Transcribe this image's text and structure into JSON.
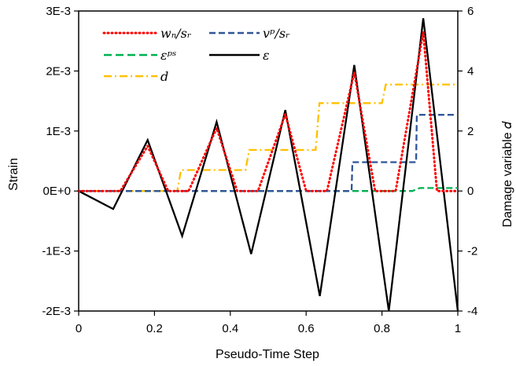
{
  "chart_data": {
    "type": "line",
    "xlabel": "Pseudo-Time Step",
    "ylabel": "Strain",
    "y2label": "Damage variable 𝑑",
    "xlim": [
      0,
      1
    ],
    "ylim": [
      -0.002,
      0.003
    ],
    "y2lim": [
      -4,
      6
    ],
    "x_ticks": [
      0,
      0.2,
      0.4,
      0.6,
      0.8,
      1
    ],
    "x_tick_labels": [
      "0",
      "0.2",
      "0.4",
      "0.6",
      "0.8",
      "1"
    ],
    "y_ticks": [
      -0.002,
      -0.001,
      0,
      0.001,
      0.002,
      0.003
    ],
    "y_tick_labels": [
      "-2E-3",
      "-1E-3",
      "0E+0",
      "1E-3",
      "2E-3",
      "3E-3"
    ],
    "y2_ticks": [
      -4,
      -2,
      0,
      2,
      4,
      6
    ],
    "y2_tick_labels": [
      "-4",
      "-2",
      "0",
      "2",
      "4",
      "6"
    ],
    "grid": false,
    "legend_position": "top-left",
    "series": [
      {
        "name": "wₙ/sᵣ",
        "axis": "left",
        "color": "#ff0000",
        "style": "dotted",
        "x": [
          0,
          0.11,
          0.182,
          0.236,
          0.29,
          0.364,
          0.418,
          0.473,
          0.545,
          0.6,
          0.655,
          0.727,
          0.782,
          0.836,
          0.909,
          0.945,
          1
        ],
        "y": [
          0,
          0,
          0.00075,
          0,
          0,
          0.00105,
          0,
          0,
          0.00128,
          0,
          0,
          0.00198,
          0,
          0,
          0.00265,
          0,
          0
        ]
      },
      {
        "name": "vᵖ/sᵣ",
        "axis": "left",
        "color": "#2f5597",
        "style": "dashed",
        "x": [
          0,
          0.72,
          0.722,
          0.89,
          0.892,
          1
        ],
        "y": [
          0,
          0,
          0.00048,
          0.00048,
          0.00127,
          0.00127
        ]
      },
      {
        "name": "εᵖˢ",
        "axis": "left",
        "color": "#00b050",
        "style": "dashed",
        "x": [
          0,
          0.88,
          0.9,
          1
        ],
        "y": [
          0,
          0,
          5e-05,
          5e-05
        ]
      },
      {
        "name": "ε",
        "axis": "left",
        "color": "#000000",
        "style": "solid",
        "x": [
          0,
          0.091,
          0.182,
          0.273,
          0.364,
          0.455,
          0.545,
          0.636,
          0.727,
          0.818,
          0.909,
          1
        ],
        "y": [
          0,
          -0.0003,
          0.00085,
          -0.00075,
          0.00115,
          -0.00105,
          0.00135,
          -0.00175,
          0.0021,
          -0.002,
          0.00288,
          -0.002
        ]
      },
      {
        "name": "d",
        "axis": "right",
        "color": "#ffc000",
        "style": "dashdot",
        "x": [
          0,
          0.26,
          0.27,
          0.44,
          0.45,
          0.625,
          0.635,
          0.8,
          0.81,
          1
        ],
        "y": [
          0,
          0,
          0.7,
          0.7,
          1.37,
          1.37,
          2.93,
          2.93,
          3.55,
          3.55
        ]
      }
    ]
  }
}
